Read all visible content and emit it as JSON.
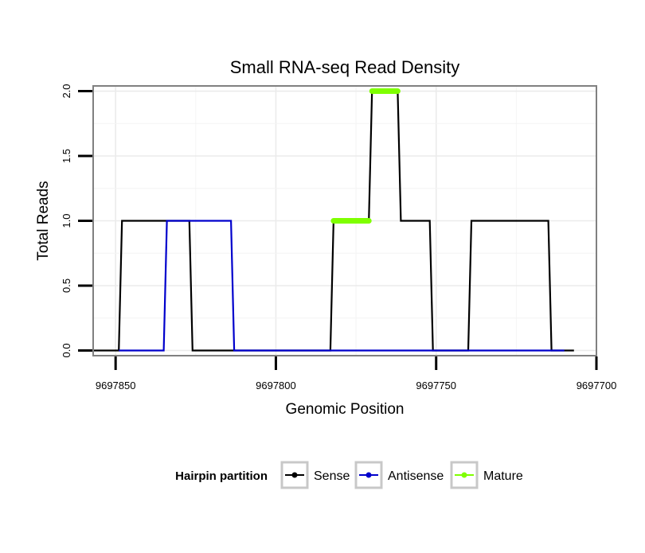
{
  "chart_data": {
    "type": "line",
    "title": "Small RNA-seq Read Density",
    "xlabel": "Genomic Position",
    "ylabel": "Total Reads",
    "x_reversed": true,
    "xlim": [
      9697857,
      9697700
    ],
    "ylim": [
      -0.04,
      2.04
    ],
    "x_ticks": [
      9697850,
      9697800,
      9697750,
      9697700
    ],
    "x_tick_labels": [
      "9697850",
      "9697800",
      "9697750",
      "9697700"
    ],
    "y_ticks": [
      0.0,
      0.5,
      1.0,
      1.5,
      2.0
    ],
    "y_tick_labels": [
      "0.0",
      "0.5",
      "1.0",
      "1.5",
      "2.0"
    ],
    "grid": true,
    "legend": {
      "title": "Hairpin partition",
      "position": "bottom",
      "items": [
        {
          "label": "Sense",
          "color": "#000000"
        },
        {
          "label": "Antisense",
          "color": "#0000cc"
        },
        {
          "label": "Mature",
          "color": "#7fff00"
        }
      ]
    },
    "series": [
      {
        "name": "Sense",
        "color": "#000000",
        "points": [
          [
            9697857,
            0
          ],
          [
            9697849,
            0
          ],
          [
            9697848,
            1
          ],
          [
            9697827,
            1
          ],
          [
            9697826,
            0
          ],
          [
            9697783,
            0
          ],
          [
            9697782,
            1
          ],
          [
            9697771,
            1
          ],
          [
            9697770,
            2
          ],
          [
            9697762,
            2
          ],
          [
            9697761,
            1
          ],
          [
            9697752,
            1
          ],
          [
            9697751,
            0
          ],
          [
            9697740,
            0
          ],
          [
            9697739,
            1
          ],
          [
            9697715,
            1
          ],
          [
            9697714,
            0
          ],
          [
            9697707,
            0
          ]
        ]
      },
      {
        "name": "Antisense",
        "color": "#0000cc",
        "points": [
          [
            9697849,
            0
          ],
          [
            9697835,
            0
          ],
          [
            9697834,
            1
          ],
          [
            9697814,
            1
          ],
          [
            9697813,
            0
          ],
          [
            9697710,
            0
          ]
        ]
      },
      {
        "name": "Mature",
        "color": "#7fff00",
        "segments": [
          [
            [
              9697782,
              1
            ],
            [
              9697771,
              1
            ]
          ],
          [
            [
              9697770,
              2
            ],
            [
              9697762,
              2
            ]
          ]
        ]
      }
    ]
  }
}
